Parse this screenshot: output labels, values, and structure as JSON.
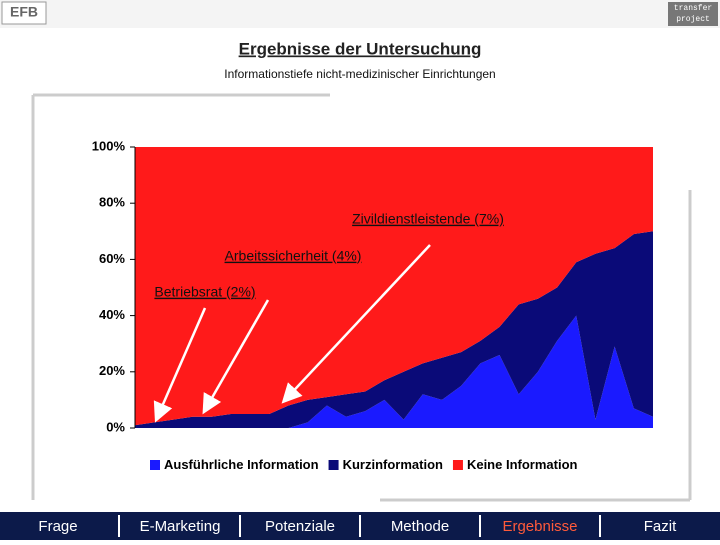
{
  "header": {
    "logo_left": "EFB",
    "logo_right_1": "transfer",
    "logo_right_2": "project"
  },
  "chart_data": {
    "type": "stacked-area",
    "title": "Ergebnisse der Untersuchung",
    "subtitle": "Informationstiefe nicht-medizinischer Einrichtungen",
    "categories": [
      null,
      null,
      null,
      null,
      null,
      null,
      null,
      null,
      null,
      null,
      null,
      null,
      null,
      null,
      null,
      null,
      null,
      null,
      null,
      null,
      null,
      null,
      null,
      null,
      null,
      null,
      null,
      null
    ],
    "series": [
      {
        "name": "Ausführliche Information",
        "color": "#1a1aff",
        "values": [
          0,
          0,
          0,
          0,
          0,
          0,
          0,
          0,
          0,
          2,
          8,
          4,
          6,
          10,
          3,
          12,
          10,
          15,
          23,
          26,
          12,
          20,
          31,
          40,
          3,
          29,
          7,
          4
        ]
      },
      {
        "name": "Kurzinformation",
        "color": "#0a0a78",
        "values": [
          1,
          2,
          3,
          4,
          4,
          5,
          5,
          5,
          8,
          8,
          3,
          8,
          7,
          7,
          17,
          11,
          15,
          12,
          8,
          10,
          32,
          26,
          19,
          19,
          59,
          35,
          62,
          66
        ]
      },
      {
        "name": "Keine Information",
        "color": "#ff1a1a",
        "values": [
          99,
          98,
          97,
          96,
          96,
          95,
          95,
          95,
          92,
          90,
          89,
          88,
          87,
          83,
          80,
          77,
          75,
          73,
          69,
          64,
          56,
          54,
          50,
          41,
          38,
          36,
          31,
          30
        ]
      }
    ],
    "ylim": [
      0,
      100
    ],
    "yticks": [
      {
        "value": 0,
        "label": "0%"
      },
      {
        "value": 20,
        "label": "20%"
      },
      {
        "value": 40,
        "label": "40%"
      },
      {
        "value": 60,
        "label": "60%"
      },
      {
        "value": 80,
        "label": "80%"
      },
      {
        "value": 100,
        "label": "100%"
      }
    ],
    "annotations": [
      "Zivildienstleistende (7%)",
      "Arbeitssicherheit (4%)",
      "Betriebsrat (2%)"
    ],
    "legend": "bottom"
  },
  "nav": [
    "Frage",
    "E-Marketing",
    "Potenziale",
    "Methode",
    "Ergebnisse",
    "Fazit"
  ],
  "nav_active": 4
}
